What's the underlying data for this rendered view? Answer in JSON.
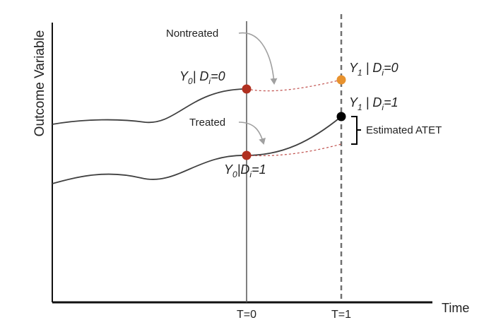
{
  "axes": {
    "y_label": "Outcome Variable",
    "x_label": "Time",
    "tick_t0": "T=0",
    "tick_t1": "T=1"
  },
  "labels": {
    "nontreated": "Nontreated",
    "treated": "Treated",
    "atet": "Estimated ATET"
  },
  "points": {
    "y0_nontreated": {
      "var": "Y",
      "sub": "0",
      "cond": "| D",
      "cond_sub": "i",
      "eq": "=0"
    },
    "y1_nontreated": {
      "var": "Y",
      "sub": "1",
      "cond": " | D",
      "cond_sub": "i",
      "eq": "=0"
    },
    "y0_treated": {
      "var": "Y",
      "sub": "0",
      "cond": "|D",
      "cond_sub": "i",
      "eq": "=1"
    },
    "y1_treated": {
      "var": "Y",
      "sub": "1",
      "cond": " | D",
      "cond_sub": "i",
      "eq": "=1"
    }
  },
  "colors": {
    "curve": "#404040",
    "axis": "#111111",
    "dashed_red": "#c0504d",
    "dot_red": "#b03020",
    "dot_orange": "#e8922e",
    "dot_black": "#000000",
    "arrow": "#a0a0a0",
    "dashed_t1": "#707070"
  }
}
